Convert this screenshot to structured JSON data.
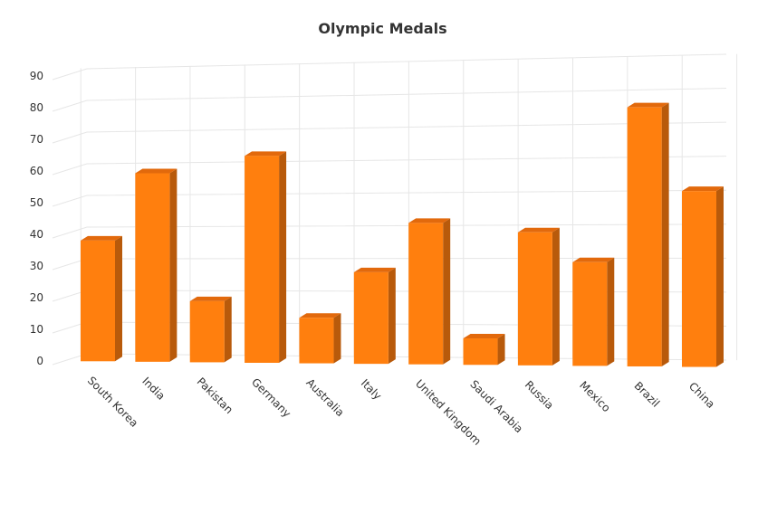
{
  "chart_data": {
    "type": "bar",
    "title": "Olympic Medals",
    "xlabel": "",
    "ylabel": "",
    "categories": [
      "South Korea",
      "India",
      "Pakistan",
      "Germany",
      "Australia",
      "Italy",
      "United Kingdom",
      "Saudi Arabia",
      "Russia",
      "Mexico",
      "Brazil",
      "China"
    ],
    "values": [
      38,
      59,
      19,
      64,
      14,
      28,
      43,
      8,
      40,
      31,
      77,
      52
    ],
    "ylim": [
      0,
      90
    ],
    "yticks": [
      0,
      10,
      20,
      30,
      40,
      50,
      60,
      70,
      80,
      90
    ],
    "grid": true,
    "legend": "none",
    "colors": {
      "bar_front": "#ff7f0e",
      "bar_top": "#e2690c",
      "bar_side": "#b85a0b",
      "grid": "#e6e6e6"
    }
  }
}
